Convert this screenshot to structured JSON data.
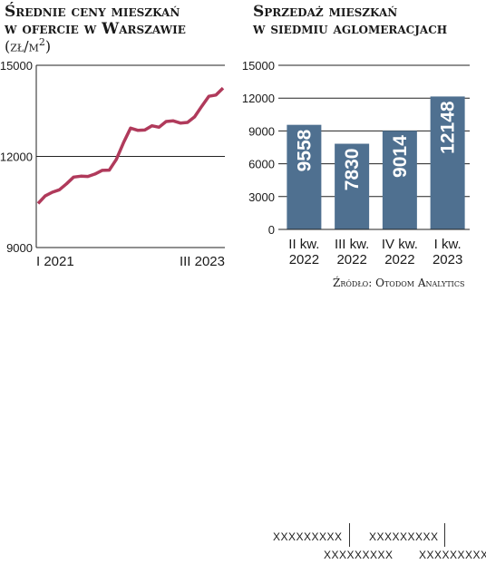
{
  "left_chart": {
    "title_lines": [
      "Średnie ceny mieszkań",
      "w ofercie w Warszawie"
    ],
    "unit": "(zł/m",
    "unit_sup": "2",
    "unit_close": ")"
  },
  "right_chart": {
    "title_lines": [
      "Sprzedaż mieszkań",
      "w siedmiu aglomeracjach"
    ]
  },
  "source": "Źródło: Otodom Analytics",
  "footer_placeholders": [
    "XXXXXXXXX",
    "XXXXXXXXX",
    "XXXXXXXXX",
    "XXXXXXXXX"
  ],
  "colors": {
    "line": "#b03a5b",
    "bar": "#4f7090",
    "bar_label_light": "#ffffff",
    "bar_label_dark": "#1a1a1a"
  },
  "chart_data": [
    {
      "type": "line",
      "title": "Średnie ceny mieszkań w ofercie w Warszawie",
      "ylabel": "(zł/m2)",
      "ylim": [
        9000,
        15000
      ],
      "yticks": [
        "15000",
        "12000",
        "9000"
      ],
      "xtick_labels": [
        "I 2021",
        "III 2023"
      ],
      "grid": true,
      "series": [
        {
          "values": [
            10450,
            10700,
            10820,
            10900,
            11100,
            11320,
            11350,
            11340,
            11420,
            11540,
            11550,
            11900,
            12450,
            12930,
            12860,
            12870,
            13010,
            12960,
            13150,
            13170,
            13100,
            13120,
            13300,
            13650,
            13980,
            14020,
            14250
          ]
        }
      ]
    },
    {
      "type": "bar",
      "title": "Sprzedaż mieszkań w siedmiu aglomeracjach",
      "ylim": [
        0,
        15000
      ],
      "yticks": [
        "15000",
        "12000",
        "9000",
        "6000",
        "3000",
        "0"
      ],
      "grid": true,
      "categories": [
        [
          "II kw.",
          "2022"
        ],
        [
          "III kw.",
          "2022"
        ],
        [
          "IV kw.",
          "2022"
        ],
        [
          "I kw.",
          "2023"
        ]
      ],
      "values": [
        9558,
        7830,
        9014,
        12148
      ],
      "data_labels": [
        "9558",
        "7830",
        "9014",
        "12148"
      ]
    }
  ]
}
